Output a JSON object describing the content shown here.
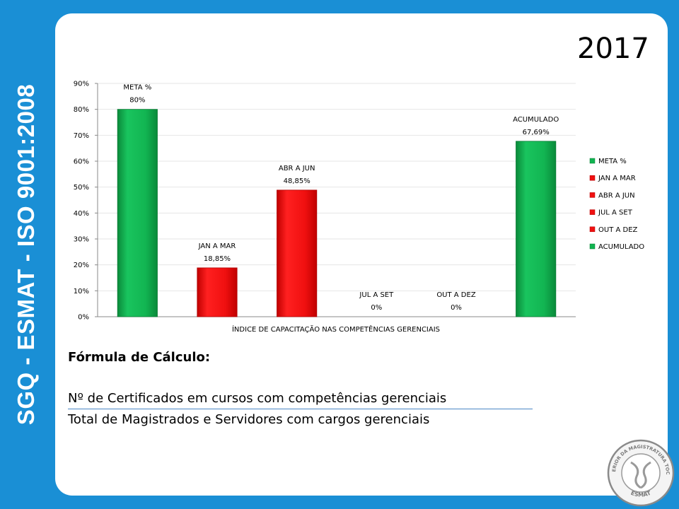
{
  "side_title": "SGQ - ESMAT - ISO 9001:2008",
  "year": "2017",
  "formula": {
    "title": "Fórmula de Cálculo:",
    "numerator": "Nº de Certificados em cursos com competências gerenciais",
    "denominator": "Total de Magistrados e Servidores com cargos gerenciais"
  },
  "seal": {
    "top_text": "ESCOLA SUPERIOR DA MAGISTRATURA TOCANTINENSE",
    "bottom_text": "ESMAT"
  },
  "colors": {
    "background": "#1a8fd5",
    "green": "#10b450",
    "red": "#f01010"
  },
  "chart_data": {
    "type": "bar",
    "xlabel": "ÍNDICE DE CAPACITAÇÃO NAS COMPETÊNCIAS  GERENCIAIS",
    "ylim": [
      0,
      90
    ],
    "yticks": [
      "0%",
      "10%",
      "20%",
      "30%",
      "40%",
      "50%",
      "60%",
      "70%",
      "80%",
      "90%"
    ],
    "grid": true,
    "legend_position": "right",
    "categories": [
      "META %",
      "JAN A MAR",
      "ABR A JUN",
      "JUL A SET",
      "OUT A DEZ",
      "ACUMULADO"
    ],
    "values": [
      80,
      18.85,
      48.85,
      0,
      0,
      67.69
    ],
    "value_labels": [
      "80%",
      "18,85%",
      "48,85%",
      "0%",
      "0%",
      "67,69%"
    ],
    "bar_colors": [
      "#10b450",
      "#f01010",
      "#f01010",
      "#f01010",
      "#f01010",
      "#10b450"
    ]
  }
}
